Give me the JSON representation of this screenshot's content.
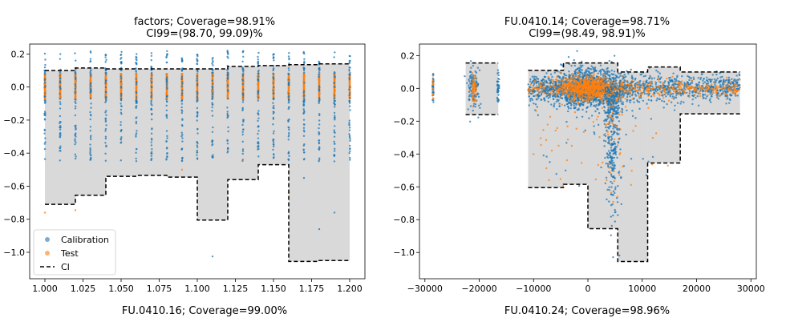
{
  "chart_data": [
    {
      "type": "scatter",
      "title": "factors; Coverage=98.91%",
      "subtitle": "CI99=(98.70, 99.09)%",
      "xlim": [
        0.99,
        1.21
      ],
      "ylim": [
        -1.16,
        0.26
      ],
      "xticks": [
        1.0,
        1.025,
        1.05,
        1.075,
        1.1,
        1.125,
        1.15,
        1.175,
        1.2
      ],
      "xtick_labels": [
        "1.000",
        "1.025",
        "1.050",
        "1.075",
        "1.100",
        "1.125",
        "1.150",
        "1.175",
        "1.200"
      ],
      "yticks": [
        0.2,
        0.0,
        -0.2,
        -0.4,
        -0.6,
        -0.8,
        -1.0
      ],
      "ytick_labels": [
        "0.2",
        "0.0",
        "−0.2",
        "−0.4",
        "−0.6",
        "−0.8",
        "−1.0"
      ],
      "ci_bands": [
        {
          "x0": 1.0,
          "x1": 1.01,
          "upper": 0.1,
          "lower": -0.71
        },
        {
          "x0": 1.01,
          "x1": 1.02,
          "upper": 0.1,
          "lower": -0.71
        },
        {
          "x0": 1.02,
          "x1": 1.04,
          "upper": 0.115,
          "lower": -0.655
        },
        {
          "x0": 1.04,
          "x1": 1.06,
          "upper": 0.11,
          "lower": -0.54
        },
        {
          "x0": 1.06,
          "x1": 1.08,
          "upper": 0.11,
          "lower": -0.535
        },
        {
          "x0": 1.08,
          "x1": 1.1,
          "upper": 0.11,
          "lower": -0.545
        },
        {
          "x0": 1.1,
          "x1": 1.12,
          "upper": 0.11,
          "lower": -0.805
        },
        {
          "x0": 1.12,
          "x1": 1.14,
          "upper": 0.125,
          "lower": -0.56
        },
        {
          "x0": 1.14,
          "x1": 1.16,
          "upper": 0.13,
          "lower": -0.47
        },
        {
          "x0": 1.16,
          "x1": 1.18,
          "upper": 0.135,
          "lower": -1.055
        },
        {
          "x0": 1.18,
          "x1": 1.2,
          "upper": 0.14,
          "lower": -1.05
        }
      ],
      "calibration_columns_x": [
        1.0,
        1.01,
        1.02,
        1.03,
        1.04,
        1.05,
        1.06,
        1.07,
        1.08,
        1.09,
        1.1,
        1.11,
        1.12,
        1.13,
        1.14,
        1.15,
        1.16,
        1.17,
        1.18,
        1.19,
        1.2
      ],
      "column_point_range": [
        -0.45,
        0.22
      ],
      "outliers": [
        {
          "x": 1.0,
          "y": -0.76,
          "set": "Test"
        },
        {
          "x": 1.02,
          "y": -0.745,
          "set": "Test"
        },
        {
          "x": 1.11,
          "y": -1.025,
          "set": "Calibration"
        },
        {
          "x": 1.16,
          "y": -0.64,
          "set": "Test"
        },
        {
          "x": 1.18,
          "y": -0.86,
          "set": "Calibration"
        },
        {
          "x": 1.19,
          "y": -0.76,
          "set": "Calibration"
        },
        {
          "x": 1.09,
          "y": -0.5,
          "set": "Test"
        },
        {
          "x": 1.17,
          "y": -0.55,
          "set": "Calibration"
        },
        {
          "x": 1.13,
          "y": -0.44,
          "set": "Test"
        }
      ],
      "legend": {
        "placement": "lower-left",
        "entries": [
          {
            "label": "Calibration",
            "color": "#1f77b4"
          },
          {
            "label": "Test",
            "color": "#ff7f0e"
          },
          {
            "label": "CI",
            "style": "dashed",
            "color": "#000000"
          }
        ]
      },
      "footer": "FU.0410.16; Coverage=99.00%"
    },
    {
      "type": "scatter",
      "title": "FU.0410.14; Coverage=98.71%",
      "subtitle": "CI99=(98.49, 98.91)%",
      "xlim": [
        -31000,
        31000
      ],
      "ylim": [
        -1.16,
        0.27
      ],
      "xticks": [
        -30000,
        -20000,
        -10000,
        0,
        10000,
        20000,
        30000
      ],
      "xtick_labels": [
        "−30000",
        "−20000",
        "−10000",
        "0",
        "10000",
        "20000",
        "30000"
      ],
      "yticks": [
        0.2,
        0.0,
        -0.2,
        -0.4,
        -0.6,
        -0.8,
        -1.0
      ],
      "ytick_labels": [
        "0.2",
        "0.0",
        "−0.2",
        "−0.4",
        "−0.6",
        "−0.8",
        "−1.0"
      ],
      "ci_bands": [
        {
          "x0": -22500,
          "x1": -16500,
          "upper": 0.155,
          "lower": -0.16
        },
        {
          "x0": -11000,
          "x1": -4500,
          "upper": 0.11,
          "lower": -0.605
        },
        {
          "x0": -4500,
          "x1": 0,
          "upper": 0.155,
          "lower": -0.585
        },
        {
          "x0": 0,
          "x1": 5500,
          "upper": 0.155,
          "lower": -0.855
        },
        {
          "x0": 5500,
          "x1": 11000,
          "upper": 0.1,
          "lower": -1.055
        },
        {
          "x0": 11000,
          "x1": 17000,
          "upper": 0.13,
          "lower": -0.455
        },
        {
          "x0": 17000,
          "x1": 28000,
          "upper": 0.1,
          "lower": -0.155
        }
      ],
      "legend": null,
      "footer": "FU.0410.24; Coverage=98.96%"
    }
  ],
  "colors": {
    "calibration": "#1f77b4",
    "test": "#ff7f0e",
    "band_fill": "#d9d9d9",
    "ci_line": "#000000"
  }
}
